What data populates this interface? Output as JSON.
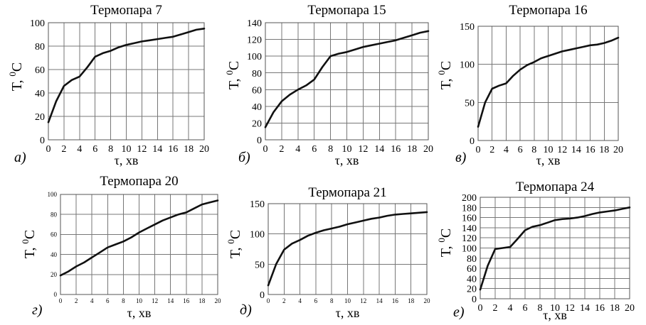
{
  "chart_data": [
    {
      "type": "line",
      "panel_label": "а)",
      "title": "Термопара 7",
      "xlabel": "τ, хв",
      "ylabel": "T, °C",
      "ylabel_main": "T, ",
      "ylabel_sup": "0",
      "ylabel_unit": "C",
      "xlim": [
        0,
        20
      ],
      "ylim": [
        0,
        100
      ],
      "xticks": [
        0,
        2,
        4,
        6,
        8,
        10,
        12,
        14,
        16,
        18,
        20
      ],
      "yticks": [
        0,
        20,
        40,
        60,
        80,
        100
      ],
      "grid": true,
      "x": [
        0,
        1,
        2,
        3,
        4,
        5,
        6,
        7,
        8,
        9,
        10,
        11,
        12,
        13,
        14,
        15,
        16,
        17,
        18,
        19,
        20
      ],
      "y": [
        15,
        33,
        46,
        51,
        54,
        62,
        71,
        74,
        76,
        79,
        81,
        82.5,
        84,
        85,
        86,
        87,
        88,
        90,
        92,
        94,
        95
      ]
    },
    {
      "type": "line",
      "panel_label": "б)",
      "title": "Термопара 15",
      "xlabel": "τ, хв",
      "ylabel": "T, °C",
      "ylabel_main": "T, ",
      "ylabel_sup": "0",
      "ylabel_unit": "C",
      "xlim": [
        0,
        20
      ],
      "ylim": [
        0,
        140
      ],
      "xticks": [
        0,
        2,
        4,
        6,
        8,
        10,
        12,
        14,
        16,
        18,
        20
      ],
      "yticks": [
        0,
        20,
        40,
        60,
        80,
        100,
        120,
        140
      ],
      "grid": true,
      "x": [
        0,
        1,
        2,
        3,
        4,
        5,
        6,
        7,
        8,
        9,
        10,
        11,
        12,
        13,
        14,
        15,
        16,
        17,
        18,
        19,
        20
      ],
      "y": [
        15,
        33,
        46,
        54,
        60,
        65,
        72,
        87,
        100,
        103,
        105,
        108,
        111,
        113,
        115,
        117,
        119,
        122,
        125,
        128,
        130
      ]
    },
    {
      "type": "line",
      "panel_label": "в)",
      "title": "Термопара 16",
      "xlabel": "τ, хв",
      "ylabel": "T, °C",
      "ylabel_main": "T, ",
      "ylabel_sup": "0",
      "ylabel_unit": "C",
      "xlim": [
        0,
        20
      ],
      "ylim": [
        0,
        150
      ],
      "xticks": [
        0,
        2,
        4,
        6,
        8,
        10,
        12,
        14,
        16,
        18,
        20
      ],
      "yticks": [
        0,
        50,
        100,
        150
      ],
      "grid": true,
      "x": [
        0,
        1,
        2,
        3,
        4,
        5,
        6,
        7,
        8,
        9,
        10,
        11,
        12,
        13,
        14,
        15,
        16,
        17,
        18,
        19,
        20
      ],
      "y": [
        18,
        50,
        68,
        72,
        75,
        85,
        93,
        99,
        103,
        108,
        111,
        114,
        117,
        119,
        121,
        123,
        125,
        126,
        128,
        131,
        135
      ]
    },
    {
      "type": "line",
      "panel_label": "г)",
      "title": "Термопара 20",
      "xlabel": "τ, хв",
      "ylabel": "T, °C",
      "ylabel_main": "T, ",
      "ylabel_sup": "0",
      "ylabel_unit": "C",
      "xlim": [
        0,
        20
      ],
      "ylim": [
        0,
        100
      ],
      "xticks": [
        0,
        2,
        4,
        6,
        8,
        10,
        12,
        14,
        16,
        18,
        20
      ],
      "yticks": [
        0,
        20,
        40,
        60,
        80,
        100
      ],
      "grid": true,
      "x": [
        0,
        1,
        2,
        3,
        4,
        5,
        6,
        7,
        8,
        9,
        10,
        11,
        12,
        13,
        14,
        15,
        16,
        17,
        18,
        19,
        20
      ],
      "y": [
        19,
        23,
        28,
        32,
        37,
        42,
        47,
        50,
        53,
        57,
        62,
        66,
        70,
        74,
        77,
        80,
        82,
        86,
        90,
        92,
        94
      ]
    },
    {
      "type": "line",
      "panel_label": "д)",
      "title": "Термопара 21",
      "xlabel": "τ, хв",
      "ylabel": "T, °C",
      "ylabel_main": "T, ",
      "ylabel_sup": "0",
      "ylabel_unit": "C",
      "xlim": [
        0,
        20
      ],
      "ylim": [
        0,
        150
      ],
      "xticks": [
        0,
        2,
        4,
        6,
        8,
        10,
        12,
        14,
        16,
        18,
        20
      ],
      "yticks": [
        0,
        50,
        100,
        150
      ],
      "grid": true,
      "x": [
        0,
        1,
        2,
        3,
        4,
        5,
        6,
        7,
        8,
        9,
        10,
        11,
        12,
        13,
        14,
        15,
        16,
        17,
        18,
        19,
        20
      ],
      "y": [
        15,
        50,
        74,
        84,
        90,
        97,
        102,
        106,
        109,
        112,
        116,
        119,
        122,
        125,
        127,
        130,
        132,
        133,
        134,
        135,
        136
      ]
    },
    {
      "type": "line",
      "panel_label": "е)",
      "title": "Термопара 24",
      "xlabel": "τ, хв",
      "ylabel": "T, °C",
      "ylabel_main": "T, ",
      "ylabel_sup": "0",
      "ylabel_unit": "C",
      "xlim": [
        0,
        20
      ],
      "ylim": [
        0,
        200
      ],
      "xticks": [
        0,
        2,
        4,
        6,
        8,
        10,
        12,
        14,
        16,
        18,
        20
      ],
      "yticks": [
        0,
        20,
        40,
        60,
        80,
        100,
        120,
        140,
        160,
        180,
        200
      ],
      "grid": true,
      "x": [
        0,
        1,
        2,
        3,
        4,
        5,
        6,
        7,
        8,
        9,
        10,
        11,
        12,
        13,
        14,
        15,
        16,
        17,
        18,
        19,
        20
      ],
      "y": [
        18,
        65,
        98,
        100,
        102,
        118,
        135,
        142,
        145,
        150,
        155,
        157,
        158,
        160,
        163,
        167,
        170,
        172,
        174,
        177,
        180
      ]
    }
  ]
}
